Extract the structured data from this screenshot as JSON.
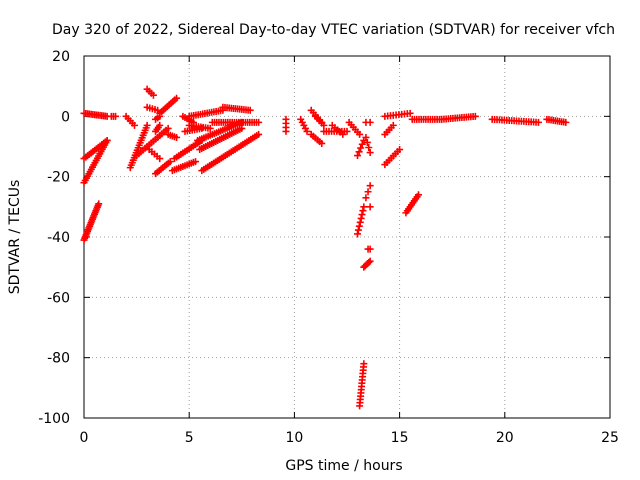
{
  "chart_data": {
    "type": "scatter",
    "title": "Day 320 of 2022, Sidereal Day-to-day VTEC variation (SDTVAR) for receiver vfch",
    "xlabel": "GPS time / hours",
    "ylabel": "SDTVAR / TECUs",
    "xlim": [
      0,
      25
    ],
    "ylim": [
      -100,
      20
    ],
    "xticks": [
      "0",
      "5",
      "10",
      "15",
      "20",
      "25"
    ],
    "yticks": [
      "-100",
      "-80",
      "-60",
      "-40",
      "-20",
      "0",
      "20"
    ],
    "xtick_values": [
      0,
      5,
      10,
      15,
      20,
      25
    ],
    "ytick_values": [
      -100,
      -80,
      -60,
      -40,
      -20,
      0,
      20
    ],
    "grid": true,
    "marker": "plus",
    "color": "#ff0000",
    "segments": [
      {
        "x0": 0.0,
        "y0": -41,
        "x1": 0.7,
        "y1": -29,
        "n": 22
      },
      {
        "x0": 0.0,
        "y0": -22,
        "x1": 1.1,
        "y1": -8,
        "n": 20
      },
      {
        "x0": 0.0,
        "y0": -14,
        "x1": 1.1,
        "y1": -8,
        "n": 14
      },
      {
        "x0": 0.0,
        "y0": 1,
        "x1": 1.1,
        "y1": 0,
        "n": 14
      },
      {
        "x0": 1.3,
        "y0": 0,
        "x1": 1.5,
        "y1": 0,
        "n": 3
      },
      {
        "x0": 2.2,
        "y0": -17,
        "x1": 3.0,
        "y1": -3,
        "n": 18
      },
      {
        "x0": 2.5,
        "y0": -13,
        "x1": 4.0,
        "y1": -4,
        "n": 16
      },
      {
        "x0": 2.0,
        "y0": 0,
        "x1": 2.4,
        "y1": -3,
        "n": 5
      },
      {
        "x0": 3.0,
        "y0": 9,
        "x1": 3.3,
        "y1": 7,
        "n": 4
      },
      {
        "x0": 3.0,
        "y0": 3,
        "x1": 3.5,
        "y1": 2,
        "n": 5
      },
      {
        "x0": 3.1,
        "y0": -11,
        "x1": 3.6,
        "y1": -14,
        "n": 5
      },
      {
        "x0": 3.4,
        "y0": -5,
        "x1": 3.6,
        "y1": -3,
        "n": 4
      },
      {
        "x0": 3.4,
        "y0": -1,
        "x1": 3.6,
        "y1": 0,
        "n": 3
      },
      {
        "x0": 3.6,
        "y0": 1,
        "x1": 4.4,
        "y1": 6,
        "n": 10
      },
      {
        "x0": 3.4,
        "y0": -19,
        "x1": 4.1,
        "y1": -15,
        "n": 9
      },
      {
        "x0": 4.0,
        "y0": -6,
        "x1": 4.4,
        "y1": -7,
        "n": 5
      },
      {
        "x0": 4.2,
        "y0": -18,
        "x1": 5.3,
        "y1": -15,
        "n": 12
      },
      {
        "x0": 4.3,
        "y0": -14,
        "x1": 5.6,
        "y1": -8,
        "n": 14
      },
      {
        "x0": 4.7,
        "y0": 0,
        "x1": 5.2,
        "y1": -2,
        "n": 6
      },
      {
        "x0": 4.8,
        "y0": -5,
        "x1": 5.6,
        "y1": -4,
        "n": 8
      },
      {
        "x0": 5.4,
        "y0": -8,
        "x1": 7.5,
        "y1": -2,
        "n": 22
      },
      {
        "x0": 5.5,
        "y0": -11,
        "x1": 7.5,
        "y1": -4,
        "n": 22
      },
      {
        "x0": 5.0,
        "y0": -3,
        "x1": 6.0,
        "y1": -4,
        "n": 10
      },
      {
        "x0": 5.6,
        "y0": -18,
        "x1": 8.3,
        "y1": -6,
        "n": 30
      },
      {
        "x0": 5.0,
        "y0": 0,
        "x1": 6.6,
        "y1": 2,
        "n": 16
      },
      {
        "x0": 6.1,
        "y0": -2,
        "x1": 8.3,
        "y1": -2,
        "n": 22
      },
      {
        "x0": 6.6,
        "y0": 3,
        "x1": 7.9,
        "y1": 2,
        "n": 14
      },
      {
        "x0": 9.6,
        "y0": -1,
        "x1": 9.6,
        "y1": -5,
        "n": 4
      },
      {
        "x0": 10.3,
        "y0": -1,
        "x1": 10.6,
        "y1": -5,
        "n": 5
      },
      {
        "x0": 10.8,
        "y0": 2,
        "x1": 11.3,
        "y1": -2,
        "n": 6
      },
      {
        "x0": 10.8,
        "y0": -6,
        "x1": 11.3,
        "y1": -9,
        "n": 6
      },
      {
        "x0": 11.0,
        "y0": 0,
        "x1": 11.4,
        "y1": -3,
        "n": 5
      },
      {
        "x0": 11.4,
        "y0": -5,
        "x1": 12.5,
        "y1": -5,
        "n": 10
      },
      {
        "x0": 11.8,
        "y0": -3,
        "x1": 12.3,
        "y1": -6,
        "n": 5
      },
      {
        "x0": 12.6,
        "y0": -2,
        "x1": 13.1,
        "y1": -6,
        "n": 6
      },
      {
        "x0": 13.0,
        "y0": -13,
        "x1": 13.3,
        "y1": -8,
        "n": 5
      },
      {
        "x0": 13.0,
        "y0": -39,
        "x1": 13.3,
        "y1": -30,
        "n": 8
      },
      {
        "x0": 13.1,
        "y0": -96,
        "x1": 13.3,
        "y1": -82,
        "n": 14
      },
      {
        "x0": 13.3,
        "y0": -50,
        "x1": 13.6,
        "y1": -48,
        "n": 6
      },
      {
        "x0": 13.4,
        "y0": -27,
        "x1": 13.6,
        "y1": -23,
        "n": 3
      },
      {
        "x0": 13.4,
        "y0": -7,
        "x1": 13.6,
        "y1": -12,
        "n": 4
      },
      {
        "x0": 13.5,
        "y0": -44,
        "x1": 13.6,
        "y1": -44,
        "n": 2
      },
      {
        "x0": 13.6,
        "y0": -30,
        "x1": 13.6,
        "y1": -30,
        "n": 1
      },
      {
        "x0": 13.4,
        "y0": -2,
        "x1": 13.6,
        "y1": -2,
        "n": 2
      },
      {
        "x0": 14.3,
        "y0": -6,
        "x1": 14.7,
        "y1": -3,
        "n": 5
      },
      {
        "x0": 14.3,
        "y0": -16,
        "x1": 15.0,
        "y1": -11,
        "n": 8
      },
      {
        "x0": 14.3,
        "y0": 0,
        "x1": 15.5,
        "y1": 1,
        "n": 10
      },
      {
        "x0": 15.3,
        "y0": -32,
        "x1": 15.9,
        "y1": -26,
        "n": 10
      },
      {
        "x0": 15.6,
        "y0": -1,
        "x1": 17.0,
        "y1": -1,
        "n": 14
      },
      {
        "x0": 17.0,
        "y0": -1,
        "x1": 18.6,
        "y1": 0,
        "n": 16
      },
      {
        "x0": 19.4,
        "y0": -1,
        "x1": 21.6,
        "y1": -2,
        "n": 20
      },
      {
        "x0": 22.0,
        "y0": -1,
        "x1": 22.9,
        "y1": -2,
        "n": 10
      }
    ]
  }
}
